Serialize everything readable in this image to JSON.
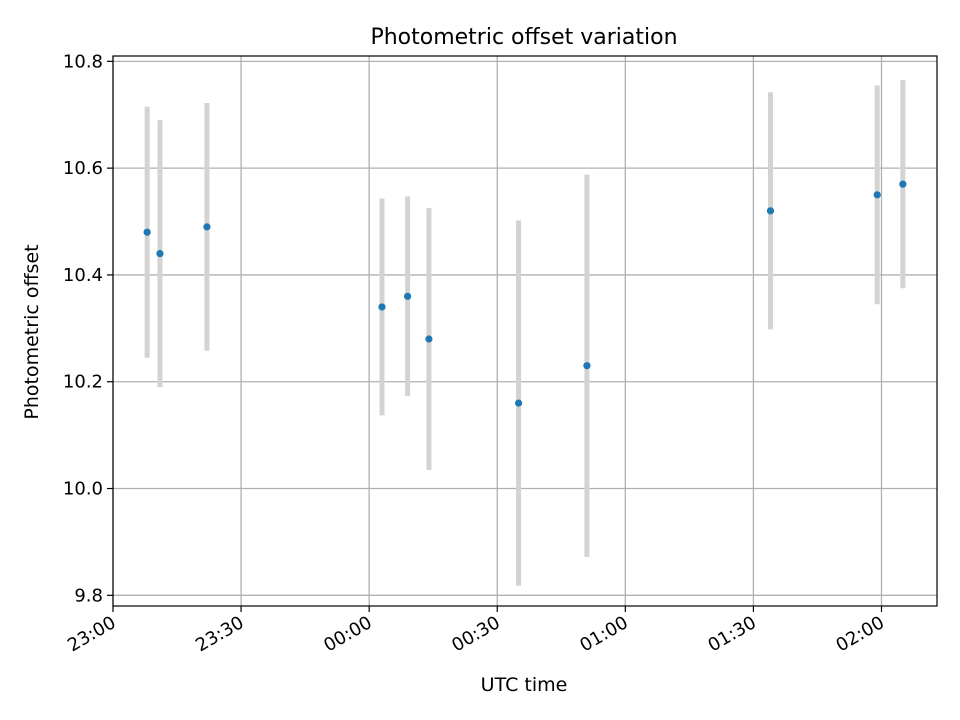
{
  "chart_data": {
    "type": "scatter",
    "title": "Photometric offset variation",
    "xlabel": "UTC time",
    "ylabel": "Photometric offset",
    "grid": true,
    "xlim": [
      "23:00",
      "02:13"
    ],
    "ylim": [
      9.78,
      10.81
    ],
    "x_tick_labels": [
      "23:00",
      "23:30",
      "00:00",
      "00:30",
      "01:00",
      "01:30",
      "02:00"
    ],
    "y_ticks": [
      9.8,
      10.0,
      10.2,
      10.4,
      10.6,
      10.8
    ],
    "y_tick_labels": [
      "9.8",
      "10.0",
      "10.2",
      "10.4",
      "10.6",
      "10.8"
    ],
    "series": [
      {
        "color": "#1f77b4",
        "errorbar_color": "#d3d3d3",
        "points": [
          {
            "x": "23:08",
            "y": 10.48,
            "yerr": 0.235
          },
          {
            "x": "23:11",
            "y": 10.44,
            "yerr": 0.25
          },
          {
            "x": "23:22",
            "y": 10.49,
            "yerr": 0.232
          },
          {
            "x": "00:03",
            "y": 10.34,
            "yerr": 0.203
          },
          {
            "x": "00:09",
            "y": 10.36,
            "yerr": 0.187
          },
          {
            "x": "00:14",
            "y": 10.28,
            "yerr": 0.245
          },
          {
            "x": "00:35",
            "y": 10.16,
            "yerr": 0.342
          },
          {
            "x": "00:51",
            "y": 10.23,
            "yerr": 0.358
          },
          {
            "x": "01:34",
            "y": 10.52,
            "yerr": 0.222
          },
          {
            "x": "01:59",
            "y": 10.55,
            "yerr": 0.205
          },
          {
            "x": "02:05",
            "y": 10.57,
            "yerr": 0.195
          }
        ]
      }
    ]
  }
}
